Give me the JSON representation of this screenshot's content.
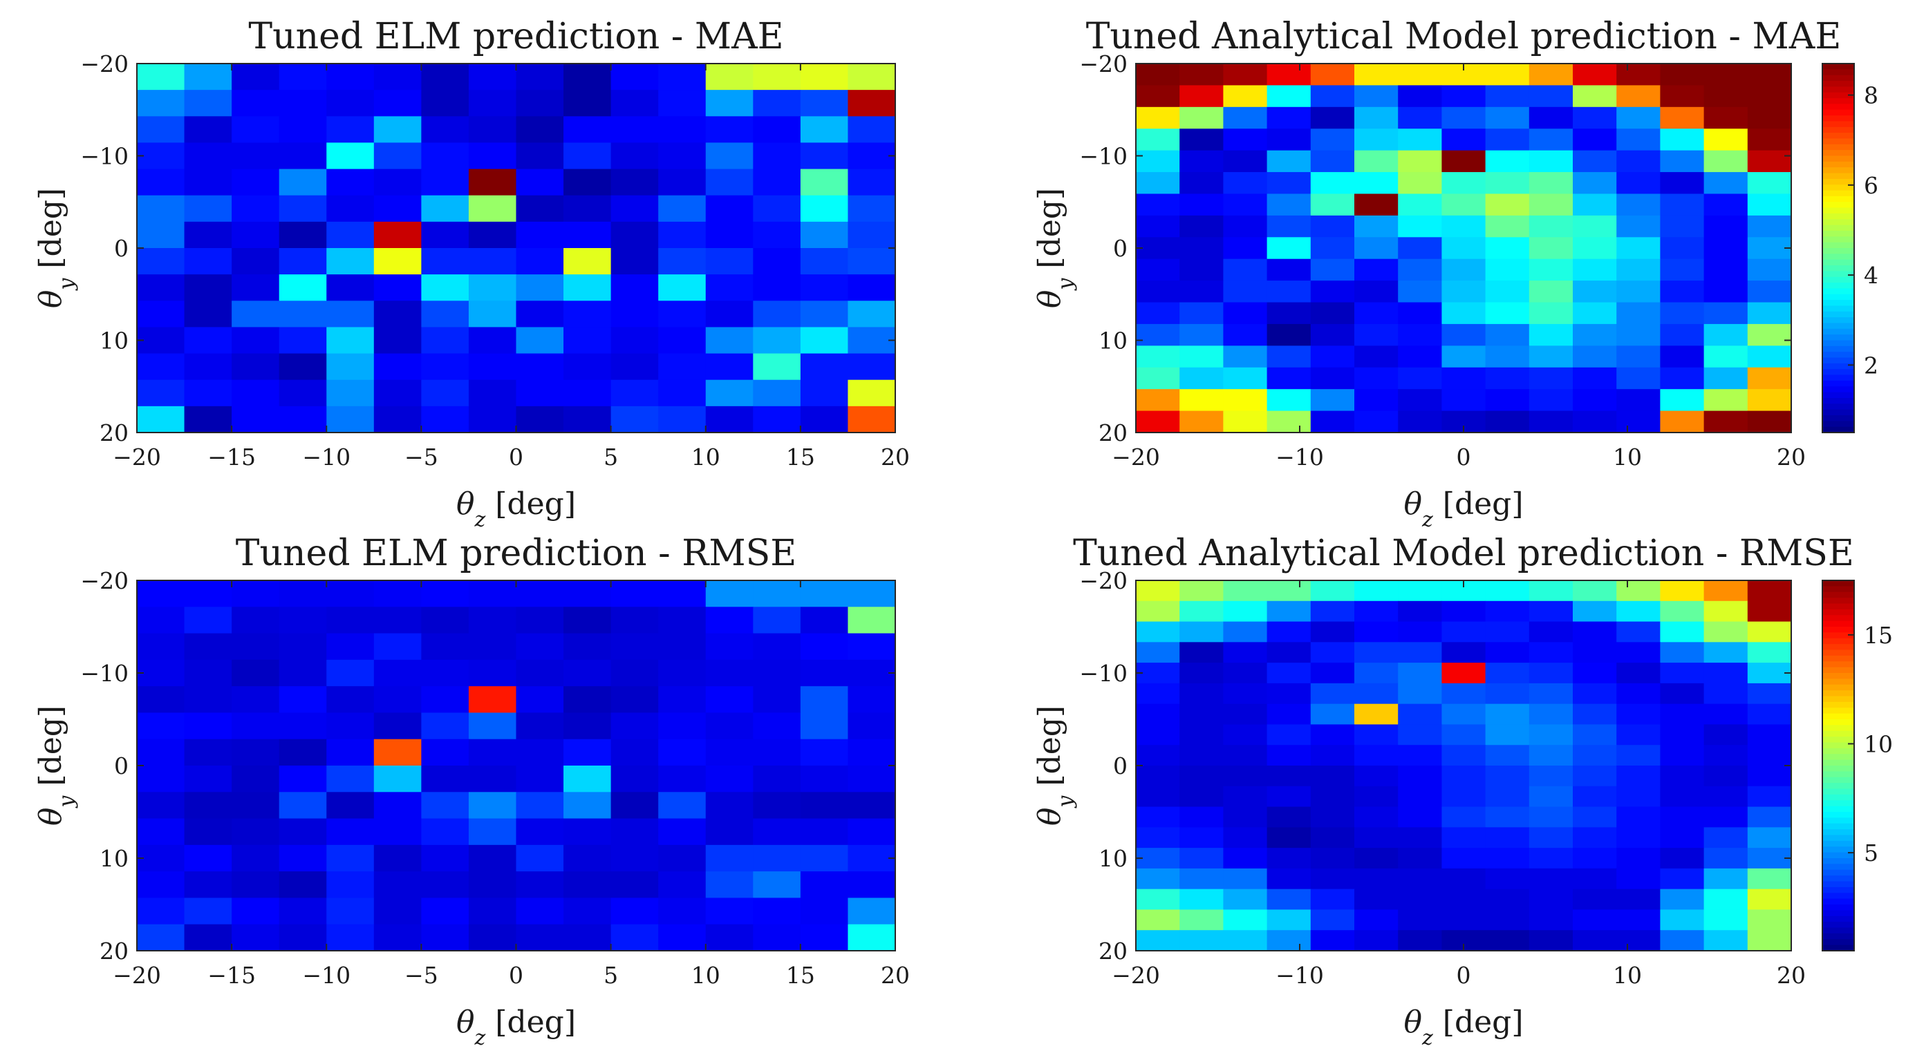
{
  "chart_data": [
    {
      "type": "heatmap",
      "title": "Tuned ELM prediction - MAE",
      "xlabel": "θz [deg]",
      "ylabel": "θy [deg]",
      "xlim": [
        -20,
        20
      ],
      "ylim": [
        -20,
        20
      ],
      "y_reversed": true,
      "x_ticks": [
        -20,
        -15,
        -10,
        -5,
        0,
        5,
        10,
        15,
        20
      ],
      "y_ticks": [
        -20,
        -10,
        0,
        10,
        20
      ],
      "x_tick_labels": [
        "−20",
        "−15",
        "−10",
        "−5",
        "0",
        "5",
        "10",
        "15",
        "20"
      ],
      "y_tick_labels": [
        "−20",
        "−10",
        "0",
        "10",
        "20"
      ],
      "colormap": "jet",
      "clim": [
        0.5,
        8.7
      ],
      "colorbar": false,
      "values": [
        [
          3.8,
          2.8,
          1.3,
          1.6,
          1.5,
          1.4,
          1.0,
          1.4,
          1.2,
          0.8,
          1.5,
          1.6,
          5.2,
          5.3,
          5.4,
          5.2
        ],
        [
          2.6,
          2.3,
          1.5,
          1.5,
          1.4,
          1.5,
          1.0,
          1.3,
          1.1,
          0.8,
          1.3,
          1.6,
          2.8,
          1.9,
          2.1,
          8.3
        ],
        [
          2.1,
          1.2,
          1.6,
          1.5,
          1.7,
          3.0,
          1.3,
          1.2,
          0.9,
          1.5,
          1.5,
          1.5,
          1.6,
          1.5,
          3.0,
          1.9
        ],
        [
          1.7,
          1.4,
          1.4,
          1.4,
          3.6,
          2.0,
          1.6,
          1.5,
          1.1,
          1.8,
          1.3,
          1.4,
          2.4,
          1.6,
          1.8,
          1.6
        ],
        [
          1.6,
          1.4,
          1.5,
          2.6,
          1.5,
          1.4,
          1.6,
          8.7,
          1.5,
          0.8,
          1.0,
          1.3,
          2.0,
          1.6,
          4.2,
          1.7
        ],
        [
          2.4,
          2.2,
          1.6,
          1.9,
          1.4,
          1.5,
          3.0,
          4.8,
          1.0,
          1.1,
          1.4,
          2.3,
          1.5,
          1.8,
          3.6,
          2.1
        ],
        [
          2.4,
          1.2,
          1.4,
          0.9,
          1.9,
          8.1,
          1.3,
          1.0,
          1.5,
          1.5,
          1.1,
          1.7,
          1.5,
          1.6,
          2.6,
          2.0
        ],
        [
          1.9,
          1.7,
          1.2,
          1.8,
          3.1,
          5.5,
          1.8,
          1.8,
          1.6,
          5.4,
          1.1,
          2.0,
          1.9,
          1.5,
          2.0,
          2.1
        ],
        [
          1.3,
          1.0,
          1.3,
          3.6,
          1.3,
          1.5,
          3.4,
          3.0,
          2.6,
          3.3,
          1.5,
          3.4,
          1.6,
          1.5,
          1.6,
          1.5
        ],
        [
          1.5,
          1.0,
          2.3,
          2.3,
          2.3,
          1.1,
          2.1,
          2.9,
          1.4,
          1.6,
          1.5,
          1.6,
          1.4,
          2.1,
          2.3,
          2.9
        ],
        [
          1.3,
          1.6,
          1.4,
          1.7,
          3.2,
          1.1,
          1.8,
          1.4,
          2.6,
          1.6,
          1.4,
          1.5,
          2.6,
          2.9,
          3.4,
          2.4
        ],
        [
          1.6,
          1.4,
          1.2,
          0.9,
          2.9,
          1.5,
          1.6,
          1.5,
          1.5,
          1.4,
          1.3,
          1.6,
          1.6,
          3.9,
          1.7,
          1.7
        ],
        [
          1.8,
          1.6,
          1.5,
          1.3,
          2.7,
          1.3,
          1.8,
          1.3,
          1.5,
          1.5,
          1.7,
          1.6,
          2.7,
          2.5,
          1.7,
          5.4
        ],
        [
          3.3,
          0.9,
          1.5,
          1.5,
          2.5,
          1.2,
          1.6,
          1.3,
          1.0,
          1.1,
          2.0,
          1.9,
          1.3,
          1.6,
          1.3,
          7.0
        ]
      ]
    },
    {
      "type": "heatmap",
      "title": "Tuned Analytical Model prediction - MAE",
      "xlabel": "θz [deg]",
      "ylabel": "θy [deg]",
      "xlim": [
        -20,
        20
      ],
      "ylim": [
        -20,
        20
      ],
      "y_reversed": true,
      "x_ticks": [
        -20,
        -10,
        0,
        10,
        20
      ],
      "y_ticks": [
        -20,
        -10,
        0,
        10,
        20
      ],
      "x_tick_labels": [
        "−20",
        "−10",
        "0",
        "10",
        "20"
      ],
      "y_tick_labels": [
        "−20",
        "−10",
        "0",
        "10",
        "20"
      ],
      "colormap": "jet",
      "clim": [
        0.5,
        8.7
      ],
      "colorbar": true,
      "colorbar_ticks": [
        2,
        4,
        6,
        8
      ],
      "values": [
        [
          8.7,
          8.6,
          8.4,
          7.8,
          7.0,
          5.8,
          5.8,
          5.8,
          5.8,
          6.4,
          7.9,
          8.5,
          8.7,
          8.7,
          8.7
        ],
        [
          8.6,
          7.9,
          5.8,
          3.6,
          2.0,
          2.5,
          1.4,
          1.6,
          2.0,
          2.0,
          5.0,
          6.6,
          8.6,
          8.7,
          8.7
        ],
        [
          5.8,
          4.8,
          2.4,
          1.6,
          1.0,
          3.0,
          1.8,
          2.2,
          2.5,
          1.4,
          1.8,
          2.7,
          6.8,
          8.6,
          8.7
        ],
        [
          3.9,
          0.9,
          1.5,
          1.4,
          2.2,
          3.2,
          3.3,
          1.6,
          2.0,
          2.3,
          1.5,
          2.3,
          3.5,
          5.6,
          8.6
        ],
        [
          3.3,
          1.3,
          1.2,
          2.9,
          2.1,
          4.3,
          5.0,
          8.7,
          3.6,
          3.5,
          2.1,
          1.8,
          2.5,
          4.7,
          8.2
        ],
        [
          3.0,
          1.2,
          1.8,
          1.9,
          3.6,
          3.6,
          4.9,
          3.9,
          4.0,
          4.3,
          2.7,
          1.7,
          1.3,
          2.6,
          3.8
        ],
        [
          1.6,
          1.5,
          1.6,
          2.5,
          4.0,
          8.7,
          3.8,
          4.2,
          5.0,
          4.6,
          3.2,
          2.5,
          2.0,
          1.6,
          3.5
        ],
        [
          1.4,
          1.1,
          1.4,
          2.1,
          1.9,
          2.8,
          3.5,
          3.4,
          4.4,
          4.0,
          3.9,
          2.6,
          2.0,
          1.5,
          2.6
        ],
        [
          1.2,
          1.2,
          1.5,
          3.6,
          2.0,
          2.6,
          2.0,
          3.3,
          3.6,
          4.2,
          3.8,
          3.3,
          1.9,
          1.5,
          2.8
        ],
        [
          1.4,
          1.2,
          1.9,
          1.4,
          2.2,
          1.6,
          2.3,
          3.0,
          3.5,
          3.8,
          3.4,
          3.1,
          2.0,
          1.5,
          2.6
        ],
        [
          1.3,
          1.3,
          1.9,
          1.9,
          1.4,
          1.3,
          2.4,
          3.1,
          3.4,
          4.2,
          3.0,
          2.9,
          1.7,
          1.5,
          2.3
        ],
        [
          1.7,
          2.0,
          1.5,
          1.1,
          1.0,
          1.6,
          1.5,
          3.3,
          3.6,
          4.0,
          3.3,
          2.6,
          2.1,
          2.2,
          3.1
        ],
        [
          2.2,
          2.4,
          1.6,
          0.7,
          1.2,
          1.7,
          1.6,
          2.2,
          2.5,
          3.4,
          2.7,
          2.6,
          1.9,
          3.2,
          4.8
        ],
        [
          3.8,
          3.7,
          2.7,
          2.0,
          1.6,
          1.3,
          1.5,
          2.8,
          2.6,
          2.9,
          2.5,
          2.3,
          1.4,
          3.7,
          3.4
        ],
        [
          4.0,
          3.2,
          3.3,
          1.6,
          1.4,
          1.6,
          1.7,
          1.6,
          1.7,
          1.8,
          1.6,
          2.1,
          1.7,
          3.0,
          6.3
        ],
        [
          6.5,
          5.6,
          5.6,
          3.6,
          2.6,
          1.5,
          1.3,
          1.6,
          1.5,
          1.7,
          1.5,
          1.4,
          3.6,
          5.0,
          6.0
        ],
        [
          7.8,
          6.5,
          5.5,
          4.9,
          1.4,
          1.6,
          1.2,
          1.1,
          1.0,
          1.2,
          1.3,
          1.4,
          6.6,
          8.6,
          8.7
        ]
      ]
    },
    {
      "type": "heatmap",
      "title": "Tuned ELM prediction - RMSE",
      "xlabel": "θz [deg]",
      "ylabel": "θy [deg]",
      "xlim": [
        -20,
        20
      ],
      "ylim": [
        -20,
        20
      ],
      "y_reversed": true,
      "x_ticks": [
        -20,
        -15,
        -10,
        -5,
        0,
        5,
        10,
        15,
        20
      ],
      "y_ticks": [
        -20,
        -10,
        0,
        10,
        20
      ],
      "x_tick_labels": [
        "−20",
        "−15",
        "−10",
        "−5",
        "0",
        "5",
        "10",
        "15",
        "20"
      ],
      "y_tick_labels": [
        "−20",
        "−10",
        "0",
        "10",
        "20"
      ],
      "colormap": "jet",
      "clim": [
        0.5,
        17.5
      ],
      "colorbar": false,
      "values": [
        [
          2.6,
          2.6,
          2.5,
          2.4,
          2.4,
          2.5,
          2.6,
          2.5,
          2.5,
          2.5,
          2.6,
          2.6,
          5.0,
          5.0,
          5.0,
          5.0
        ],
        [
          2.4,
          3.0,
          2.0,
          2.1,
          2.0,
          2.0,
          1.8,
          2.0,
          1.9,
          1.5,
          1.9,
          2.0,
          2.6,
          3.5,
          2.2,
          9.0
        ],
        [
          2.2,
          1.9,
          1.9,
          2.0,
          2.4,
          3.0,
          2.0,
          2.0,
          2.2,
          1.9,
          2.0,
          2.0,
          2.4,
          2.3,
          2.6,
          2.7
        ],
        [
          2.3,
          2.0,
          1.6,
          2.0,
          3.2,
          2.3,
          2.3,
          2.2,
          2.0,
          2.1,
          1.9,
          2.1,
          2.2,
          2.2,
          2.3,
          2.3
        ],
        [
          1.9,
          2.0,
          2.1,
          2.7,
          2.0,
          2.2,
          2.5,
          15.0,
          2.4,
          1.5,
          1.7,
          2.3,
          2.6,
          2.2,
          4.0,
          2.4
        ],
        [
          2.7,
          2.6,
          2.4,
          2.4,
          2.3,
          1.8,
          3.3,
          4.2,
          1.9,
          1.7,
          2.2,
          2.5,
          2.3,
          2.5,
          4.0,
          2.3
        ],
        [
          2.5,
          1.9,
          1.8,
          1.5,
          2.5,
          14.0,
          2.5,
          2.2,
          2.2,
          2.8,
          2.1,
          2.7,
          2.4,
          2.4,
          2.8,
          2.5
        ],
        [
          2.5,
          2.2,
          1.7,
          2.6,
          3.6,
          5.8,
          2.0,
          2.0,
          2.2,
          6.2,
          2.0,
          2.3,
          2.5,
          2.1,
          2.3,
          2.4
        ],
        [
          2.0,
          1.6,
          1.6,
          3.8,
          1.6,
          2.5,
          3.6,
          4.8,
          3.6,
          4.8,
          1.5,
          3.8,
          2.0,
          1.7,
          1.6,
          1.6
        ],
        [
          2.5,
          1.7,
          1.8,
          2.0,
          2.5,
          2.5,
          3.0,
          3.9,
          2.3,
          2.2,
          2.1,
          2.5,
          2.0,
          2.3,
          2.3,
          2.5
        ],
        [
          2.3,
          2.6,
          2.0,
          2.5,
          3.3,
          1.8,
          2.3,
          1.8,
          3.3,
          2.0,
          2.1,
          2.0,
          3.5,
          3.5,
          3.5,
          3.0
        ],
        [
          2.5,
          2.0,
          1.8,
          1.5,
          3.0,
          2.0,
          2.0,
          1.8,
          2.0,
          1.8,
          1.8,
          2.2,
          3.8,
          4.5,
          2.5,
          2.5
        ],
        [
          2.9,
          3.3,
          2.6,
          2.2,
          3.2,
          2.0,
          2.6,
          2.0,
          2.5,
          2.2,
          2.6,
          2.4,
          2.7,
          2.6,
          2.5,
          5.0
        ],
        [
          3.6,
          1.7,
          2.3,
          2.0,
          3.0,
          2.1,
          2.4,
          1.8,
          2.0,
          2.0,
          3.0,
          2.6,
          2.2,
          2.5,
          2.6,
          7.0
        ]
      ]
    },
    {
      "type": "heatmap",
      "title": "Tuned Analytical Model prediction - RMSE",
      "xlabel": "θz [deg]",
      "ylabel": "θy [deg]",
      "xlim": [
        -20,
        20
      ],
      "ylim": [
        -20,
        20
      ],
      "y_reversed": true,
      "x_ticks": [
        -20,
        -10,
        0,
        10,
        20
      ],
      "y_ticks": [
        -20,
        -10,
        0,
        10,
        20
      ],
      "x_tick_labels": [
        "−20",
        "−10",
        "0",
        "10",
        "20"
      ],
      "y_tick_labels": [
        "−20",
        "−10",
        "0",
        "10",
        "20"
      ],
      "colormap": "jet",
      "clim": [
        0.5,
        17.5
      ],
      "colorbar": true,
      "colorbar_ticks": [
        5,
        10,
        15
      ],
      "values": [
        [
          10.5,
          9.5,
          8.5,
          8.5,
          7.5,
          7.0,
          7.0,
          7.0,
          7.0,
          7.5,
          8.0,
          9.5,
          11.5,
          13.0,
          17.0
        ],
        [
          9.8,
          7.5,
          7.0,
          5.0,
          3.3,
          2.8,
          2.2,
          2.5,
          2.8,
          3.0,
          5.5,
          6.5,
          8.5,
          10.5,
          17.0
        ],
        [
          6.0,
          5.5,
          4.5,
          2.8,
          2.0,
          2.6,
          2.5,
          3.0,
          3.0,
          2.3,
          2.5,
          3.4,
          7.0,
          9.5,
          10.5
        ],
        [
          4.5,
          1.5,
          2.3,
          2.0,
          3.0,
          3.5,
          3.5,
          2.0,
          2.5,
          2.8,
          2.5,
          2.5,
          4.5,
          5.5,
          7.5
        ],
        [
          3.0,
          1.8,
          2.0,
          3.0,
          2.4,
          4.0,
          4.5,
          15.5,
          3.5,
          3.3,
          2.6,
          2.0,
          3.0,
          3.0,
          6.0
        ],
        [
          2.8,
          2.0,
          2.2,
          2.3,
          3.8,
          3.8,
          4.5,
          4.0,
          3.8,
          4.0,
          3.0,
          2.5,
          2.0,
          3.0,
          3.5
        ],
        [
          2.5,
          2.0,
          2.0,
          2.5,
          4.5,
          12.0,
          3.5,
          4.5,
          5.0,
          4.5,
          3.5,
          2.8,
          2.5,
          2.5,
          3.0
        ],
        [
          2.5,
          2.0,
          2.2,
          3.0,
          2.5,
          3.0,
          3.5,
          4.0,
          5.0,
          4.8,
          4.0,
          3.0,
          2.5,
          2.0,
          2.5
        ],
        [
          2.2,
          2.0,
          2.0,
          2.5,
          2.3,
          2.8,
          2.8,
          3.5,
          4.0,
          4.5,
          3.8,
          3.5,
          2.5,
          2.2,
          2.5
        ],
        [
          2.0,
          1.8,
          1.8,
          1.8,
          1.8,
          2.2,
          2.5,
          3.2,
          3.5,
          4.0,
          3.5,
          3.0,
          2.2,
          2.0,
          2.5
        ],
        [
          2.0,
          1.8,
          2.0,
          2.2,
          1.8,
          2.0,
          2.5,
          3.2,
          3.5,
          4.2,
          3.2,
          3.0,
          2.2,
          2.2,
          3.0
        ],
        [
          2.8,
          2.5,
          2.0,
          1.5,
          1.8,
          2.2,
          2.5,
          3.5,
          3.8,
          4.0,
          3.5,
          2.8,
          2.5,
          2.5,
          4.0
        ],
        [
          3.0,
          2.8,
          2.2,
          1.2,
          1.6,
          2.0,
          2.0,
          3.0,
          3.0,
          3.5,
          3.0,
          2.8,
          2.5,
          3.5,
          5.0
        ],
        [
          4.0,
          3.5,
          2.5,
          2.0,
          1.8,
          1.6,
          1.8,
          2.8,
          2.8,
          3.0,
          2.8,
          2.5,
          2.0,
          3.8,
          4.5
        ],
        [
          5.0,
          4.5,
          4.5,
          2.2,
          2.0,
          2.0,
          2.0,
          2.0,
          2.2,
          2.2,
          2.2,
          2.5,
          3.0,
          5.5,
          8.5
        ],
        [
          7.5,
          6.5,
          5.5,
          4.0,
          3.0,
          2.0,
          2.0,
          2.0,
          2.0,
          2.2,
          2.0,
          2.0,
          5.0,
          7.0,
          10.5
        ],
        [
          9.5,
          8.5,
          7.0,
          6.0,
          3.5,
          2.5,
          2.0,
          2.0,
          2.0,
          2.2,
          2.5,
          2.5,
          6.0,
          7.0,
          9.5
        ],
        [
          6.0,
          6.0,
          6.0,
          5.0,
          2.5,
          2.2,
          1.5,
          1.2,
          1.2,
          1.5,
          2.0,
          2.0,
          4.5,
          6.0,
          9.5
        ]
      ]
    }
  ]
}
